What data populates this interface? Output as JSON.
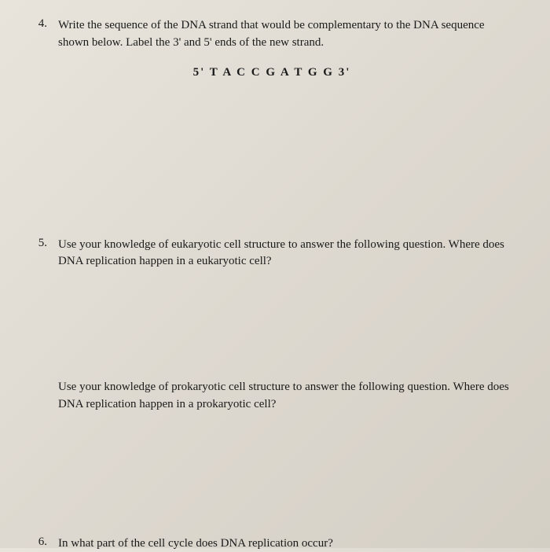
{
  "questions": {
    "q4": {
      "number": "4.",
      "text": "Write the sequence of the DNA strand that would be complementary to the DNA sequence shown below. Label the 3' and 5' ends of the new strand.",
      "dna_sequence": "5'  T A C C G A T G G  3'"
    },
    "q5": {
      "number": "5.",
      "text": "Use your knowledge of eukaryotic cell structure to answer the following question. Where does DNA replication happen in a eukaryotic cell?"
    },
    "q5b": {
      "text": "Use your knowledge of prokaryotic cell structure to answer the following question. Where does DNA replication happen in a prokaryotic cell?"
    },
    "q6": {
      "number": "6.",
      "text": "In what part of the cell cycle does DNA replication occur?"
    }
  },
  "styling": {
    "background_color": "#e2ddd4",
    "text_color": "#1a1a1a",
    "font_family": "Palatino Linotype",
    "body_fontsize": 15,
    "sequence_fontweight": "bold",
    "sequence_letter_spacing": 2
  }
}
